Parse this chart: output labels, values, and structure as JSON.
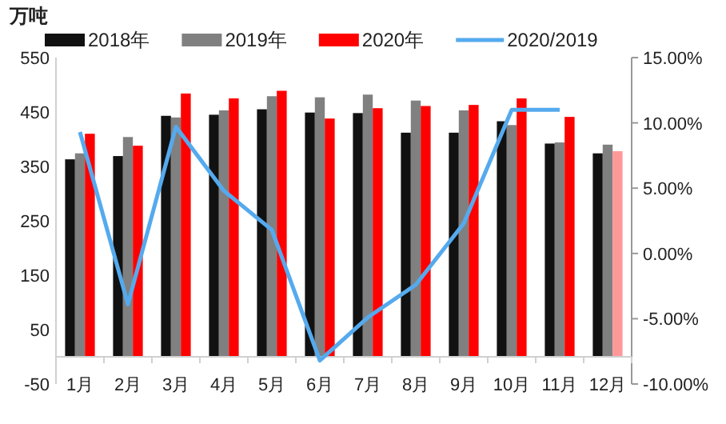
{
  "chart_data": {
    "type": "bar",
    "ylabel": "万吨",
    "categories": [
      "1月",
      "2月",
      "3月",
      "4月",
      "5月",
      "6月",
      "7月",
      "8月",
      "9月",
      "10月",
      "11月",
      "12月"
    ],
    "series": [
      {
        "name": "2018年",
        "color": "#111111",
        "values": [
          363,
          369,
          443,
          445,
          455,
          449,
          448,
          412,
          412,
          433,
          392,
          374
        ]
      },
      {
        "name": "2019年",
        "color": "#808080",
        "values": [
          374,
          404,
          440,
          453,
          479,
          477,
          482,
          471,
          453,
          426,
          394,
          390
        ]
      },
      {
        "name": "2020年",
        "color": "#ff0000",
        "colors": [
          "#ff0000",
          "#ff0000",
          "#ff0000",
          "#ff0000",
          "#ff0000",
          "#ff0000",
          "#ff0000",
          "#ff0000",
          "#ff0000",
          "#ff0000",
          "#ff0000",
          "#ff9999"
        ],
        "values": [
          410,
          388,
          484,
          475,
          489,
          438,
          457,
          461,
          463,
          475,
          441,
          378
        ]
      },
      {
        "name": "2020/2019",
        "type": "line",
        "axis": "y2",
        "color": "#55aaee",
        "values": [
          9.3,
          -3.9,
          9.7,
          4.8,
          1.8,
          -8.2,
          -4.9,
          -2.4,
          2.3,
          11.0,
          11.0,
          null
        ]
      }
    ],
    "ylim": [
      -50,
      550
    ],
    "yticks": [
      -50,
      50,
      150,
      250,
      350,
      450,
      550
    ],
    "y2lim": [
      -10,
      15
    ],
    "y2ticks": [
      {
        "value": -10,
        "label": "-10.00%"
      },
      {
        "value": -5,
        "label": "-5.00%"
      },
      {
        "value": 0,
        "label": "0.00%"
      },
      {
        "value": 5,
        "label": "5.00%"
      },
      {
        "value": 10,
        "label": "10.00%"
      },
      {
        "value": 15,
        "label": "15.00%"
      }
    ],
    "legend": "top",
    "grid": false
  }
}
